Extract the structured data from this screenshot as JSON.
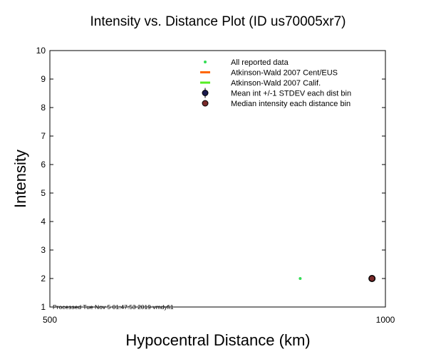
{
  "chart_data": {
    "type": "scatter",
    "title": "Intensity vs. Distance Plot (ID us70005xr7)",
    "xlabel": "Hypocentral Distance (km)",
    "ylabel": "Intensity",
    "xlim": [
      500,
      1000
    ],
    "ylim": [
      1,
      10
    ],
    "x_tick_labels": [
      "500",
      "1000"
    ],
    "y_tick_labels": [
      "1",
      "2",
      "3",
      "4",
      "5",
      "6",
      "7",
      "8",
      "9",
      "10"
    ],
    "grid": false,
    "legend_position": "top-right",
    "legend": [
      {
        "label": "All reported data",
        "marker": "small-dot",
        "color": "#33dd55"
      },
      {
        "label": "Atkinson-Wald 2007 Cent/EUS",
        "marker": "line",
        "color": "#ff6600"
      },
      {
        "label": "Atkinson-Wald 2007 Calif.",
        "marker": "line",
        "color": "#55ee22"
      },
      {
        "label": "Mean int +/-1 STDEV each dist bin",
        "marker": "circle-errorbar",
        "color": "#1a1a4d"
      },
      {
        "label": "Median intensity each distance bin",
        "marker": "circle",
        "color": "#7a2a2a"
      }
    ],
    "series": [
      {
        "name": "All reported data",
        "color": "#33dd55",
        "points": [
          [
            873,
            2
          ]
        ]
      },
      {
        "name": "Mean int +/-1 STDEV each dist bin",
        "color": "#1a1a4d",
        "points": [
          [
            980,
            2
          ]
        ]
      },
      {
        "name": "Median intensity each distance bin",
        "color": "#7a2a2a",
        "points": [
          [
            980,
            2
          ]
        ]
      }
    ],
    "annotation": "Processed Tue Nov  5 01:47:53 2019 vmdyfi1"
  }
}
